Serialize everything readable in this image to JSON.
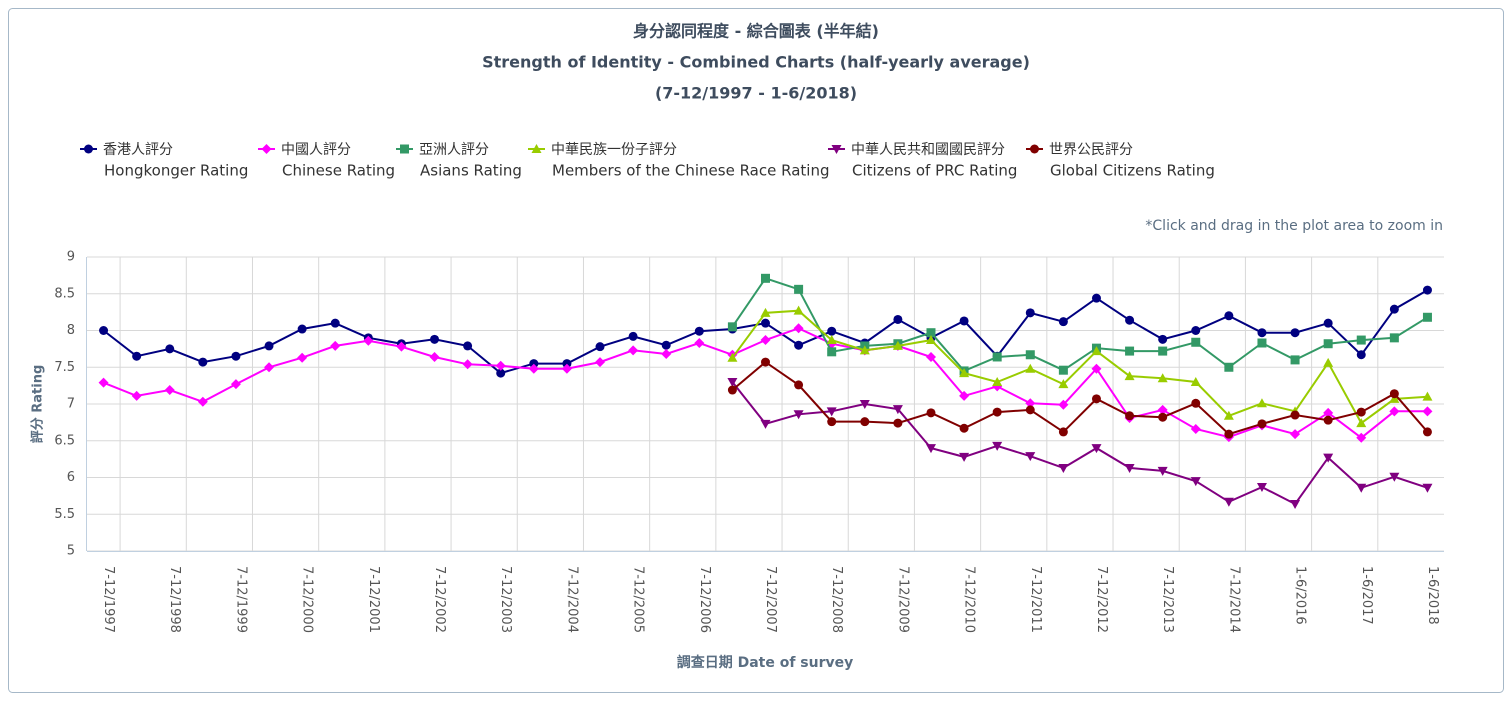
{
  "chart_data": {
    "type": "line",
    "title": "身分認同程度 - 綜合圖表 (半年結)",
    "subtitle": "Strength of Identity - Combined Charts (half-yearly average)",
    "period": "(7-12/1997 - 1-6/2018)",
    "zoom_note": "*Click and drag in the plot area to zoom in",
    "y_label": "評分 Rating",
    "x_label": "調查日期 Date of survey",
    "categories": [
      "7-12/1997",
      null,
      "7-12/1998",
      null,
      "7-12/1999",
      null,
      "7-12/2000",
      null,
      "7-12/2001",
      null,
      "7-12/2002",
      null,
      "7-12/2003",
      null,
      "7-12/2004",
      null,
      "7-12/2005",
      null,
      "7-12/2006",
      null,
      "7-12/2007",
      null,
      "7-12/2008",
      null,
      "7-12/2009",
      null,
      "7-12/2010",
      null,
      "7-12/2011",
      null,
      "7-12/2012",
      null,
      "7-12/2013",
      null,
      "7-12/2014",
      null,
      "1-6/2016",
      null,
      "1-6/2017",
      null,
      "1-6/2018"
    ],
    "ylim": [
      5,
      9
    ],
    "yticks": [
      5,
      5.5,
      6,
      6.5,
      7,
      7.5,
      8,
      8.5,
      9
    ],
    "grid": true,
    "series": [
      {
        "name": "香港人評分",
        "name_en": "Hongkonger Rating",
        "color": "#000080",
        "marker": "circle",
        "values": [
          8.0,
          7.65,
          7.75,
          7.57,
          7.65,
          7.79,
          8.02,
          8.1,
          7.9,
          7.82,
          7.88,
          7.79,
          7.42,
          7.55,
          7.55,
          7.78,
          7.92,
          7.8,
          7.99,
          8.02,
          8.1,
          7.8,
          7.99,
          7.83,
          8.15,
          7.9,
          8.13,
          7.65,
          8.24,
          8.12,
          8.44,
          8.14,
          7.88,
          8.0,
          8.2,
          7.97,
          7.97,
          8.1,
          7.67,
          8.29,
          8.55
        ]
      },
      {
        "name": "中國人評分",
        "name_en": "Chinese Rating",
        "color": "#ff00ff",
        "marker": "diamond",
        "values": [
          7.29,
          7.11,
          7.19,
          7.03,
          7.27,
          7.5,
          7.63,
          7.79,
          7.86,
          7.78,
          7.64,
          7.54,
          7.52,
          7.48,
          7.48,
          7.57,
          7.73,
          7.68,
          7.83,
          7.67,
          7.87,
          8.03,
          7.82,
          7.73,
          7.79,
          7.64,
          7.11,
          7.24,
          7.01,
          6.99,
          7.48,
          6.81,
          6.92,
          6.66,
          6.55,
          6.71,
          6.59,
          6.88,
          6.54,
          6.9,
          6.9
        ]
      },
      {
        "name": "亞洲人評分",
        "name_en": "Asians Rating",
        "color": "#339966",
        "marker": "square",
        "values": [
          null,
          null,
          null,
          null,
          null,
          null,
          null,
          null,
          null,
          null,
          null,
          null,
          null,
          null,
          null,
          null,
          null,
          null,
          null,
          8.05,
          8.71,
          8.56,
          7.71,
          7.79,
          7.82,
          7.97,
          7.45,
          7.64,
          7.67,
          7.46,
          7.76,
          7.72,
          7.72,
          7.84,
          7.5,
          7.83,
          7.6,
          7.82,
          7.87,
          7.9,
          8.18
        ]
      },
      {
        "name": "中華民族一份子評分",
        "name_en": "Members of the Chinese Race Rating",
        "color": "#99cc00",
        "marker": "triangle",
        "values": [
          null,
          null,
          null,
          null,
          null,
          null,
          null,
          null,
          null,
          null,
          null,
          null,
          null,
          null,
          null,
          null,
          null,
          null,
          null,
          7.63,
          8.24,
          8.27,
          7.87,
          7.73,
          7.79,
          7.87,
          7.42,
          7.3,
          7.48,
          7.27,
          7.72,
          7.38,
          7.35,
          7.3,
          6.84,
          7.01,
          6.9,
          7.56,
          6.74,
          7.07,
          7.1
        ]
      },
      {
        "name": "中華人民共和國國民評分",
        "name_en": "Citizens of PRC Rating",
        "color": "#800080",
        "marker": "triangle-down",
        "values": [
          null,
          null,
          null,
          null,
          null,
          null,
          null,
          null,
          null,
          null,
          null,
          null,
          null,
          null,
          null,
          null,
          null,
          null,
          null,
          7.3,
          6.73,
          6.86,
          6.9,
          7.0,
          6.93,
          6.4,
          6.28,
          6.43,
          6.29,
          6.13,
          6.4,
          6.13,
          6.09,
          5.95,
          5.67,
          5.87,
          5.64,
          6.27,
          5.86,
          6.01,
          5.86
        ]
      },
      {
        "name": "世界公民評分",
        "name_en": "Global Citizens Rating",
        "color": "#800000",
        "marker": "circle",
        "values": [
          null,
          null,
          null,
          null,
          null,
          null,
          null,
          null,
          null,
          null,
          null,
          null,
          null,
          null,
          null,
          null,
          null,
          null,
          null,
          7.19,
          7.57,
          7.26,
          6.76,
          6.76,
          6.74,
          6.88,
          6.67,
          6.89,
          6.92,
          6.62,
          7.07,
          6.84,
          6.82,
          7.01,
          6.59,
          6.73,
          6.85,
          6.78,
          6.89,
          7.14,
          6.62
        ]
      }
    ]
  }
}
